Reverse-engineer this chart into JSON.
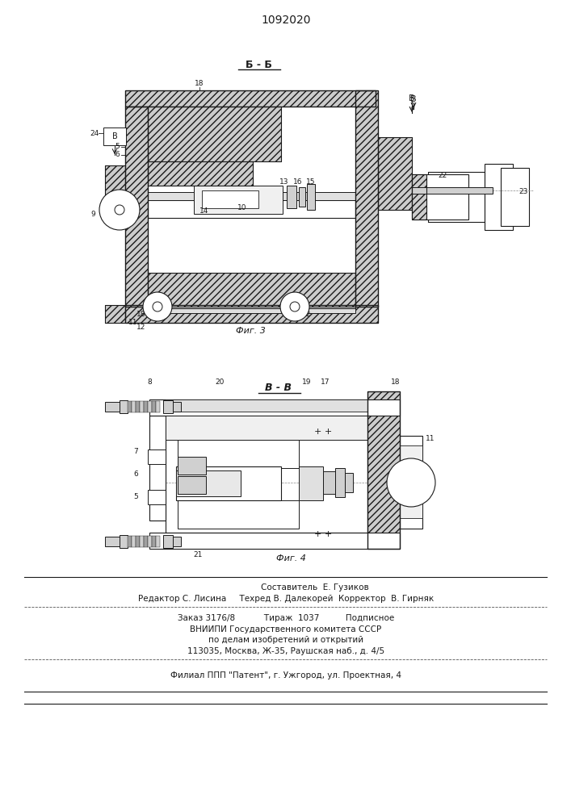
{
  "title": "1092020",
  "lc": "#1a1a1a",
  "bg": "white",
  "footer_line1": "Составитель  Е. Гузиков",
  "footer_line2": "Редактор С. Лисина     Техред В. Далекорей  Корректор  В. Гирняк",
  "footer_line3": "Заказ 3176/8           Тираж  1037          Подписное",
  "footer_line4": "ВНИИПИ Государственного комитета СССР",
  "footer_line5": "по делам изобретений и открытий",
  "footer_line6": "113035, Москва, Ж-35, Раушская наб., д. 4/5",
  "footer_line7": "Филиал ППП \"Патент\", г. Ужгород, ул. Проектная, 4",
  "fig3_label": "Фиг. 3",
  "fig4_label": "Фиг. 4"
}
